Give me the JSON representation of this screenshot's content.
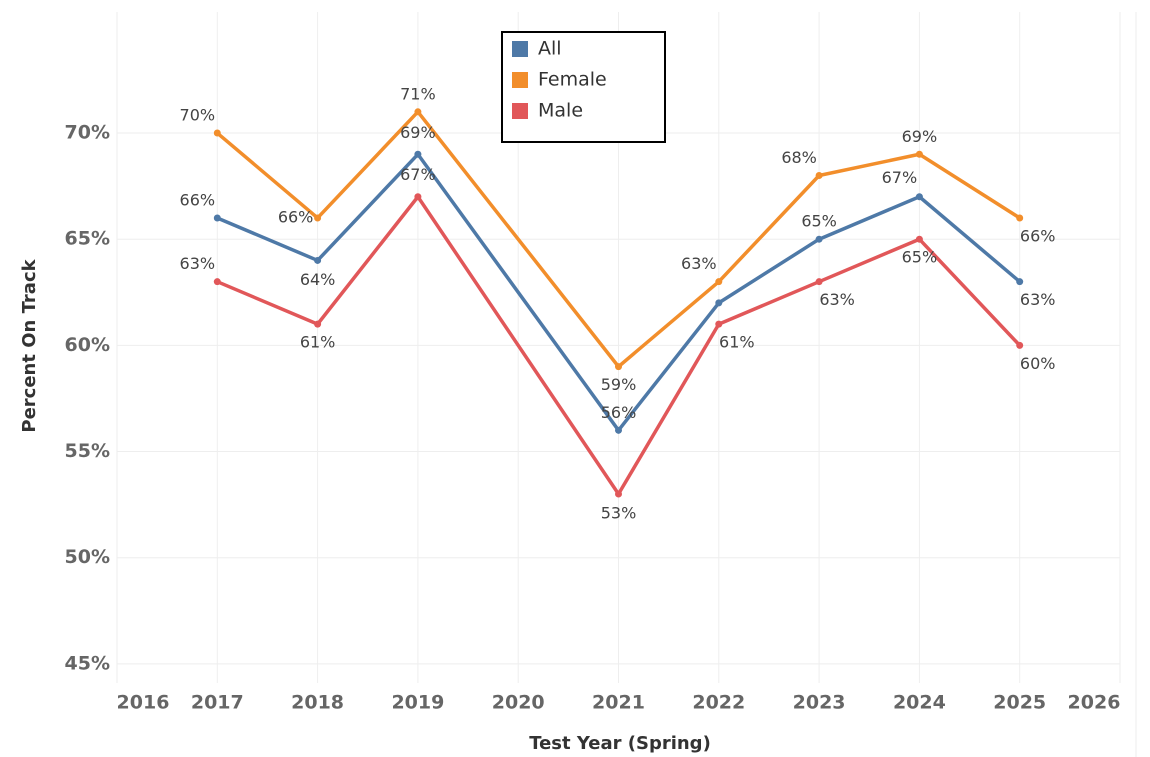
{
  "chart_data": {
    "type": "line",
    "x_label": "Test Year (Spring)",
    "y_label": "Percent On Track",
    "x": [
      2017,
      2018,
      2019,
      2021,
      2022,
      2023,
      2024,
      2025
    ],
    "series": [
      {
        "name": "All",
        "color": "#4e79a7",
        "values": [
          66,
          64,
          69,
          56,
          62,
          65,
          67,
          63
        ],
        "value_labels": [
          "66%",
          "64%",
          "69%",
          "56%",
          null,
          "65%",
          "67%",
          "63%"
        ]
      },
      {
        "name": "Female",
        "color": "#f28e2b",
        "values": [
          70,
          66,
          71,
          59,
          63,
          68,
          69,
          66
        ],
        "value_labels": [
          "70%",
          "66%",
          "71%",
          "59%",
          "63%",
          "68%",
          "69%",
          "66%"
        ]
      },
      {
        "name": "Male",
        "color": "#e15759",
        "values": [
          63,
          61,
          67,
          53,
          61,
          63,
          65,
          60
        ],
        "value_labels": [
          "63%",
          "61%",
          "67%",
          "53%",
          "61%",
          "63%",
          "65%",
          "60%"
        ]
      }
    ],
    "xlim": [
      2016,
      2026
    ],
    "xticks": [
      2016,
      2017,
      2018,
      2019,
      2020,
      2021,
      2022,
      2023,
      2024,
      2025,
      2026
    ],
    "ylim": [
      44.1,
      75.7
    ],
    "yticks": [
      {
        "value": 45,
        "label": "45%"
      },
      {
        "value": 50,
        "label": "50%"
      },
      {
        "value": 55,
        "label": "55%"
      },
      {
        "value": 60,
        "label": "60%"
      },
      {
        "value": 65,
        "label": "65%"
      },
      {
        "value": 70,
        "label": "70%"
      }
    ],
    "grid": true,
    "legend": "top"
  }
}
